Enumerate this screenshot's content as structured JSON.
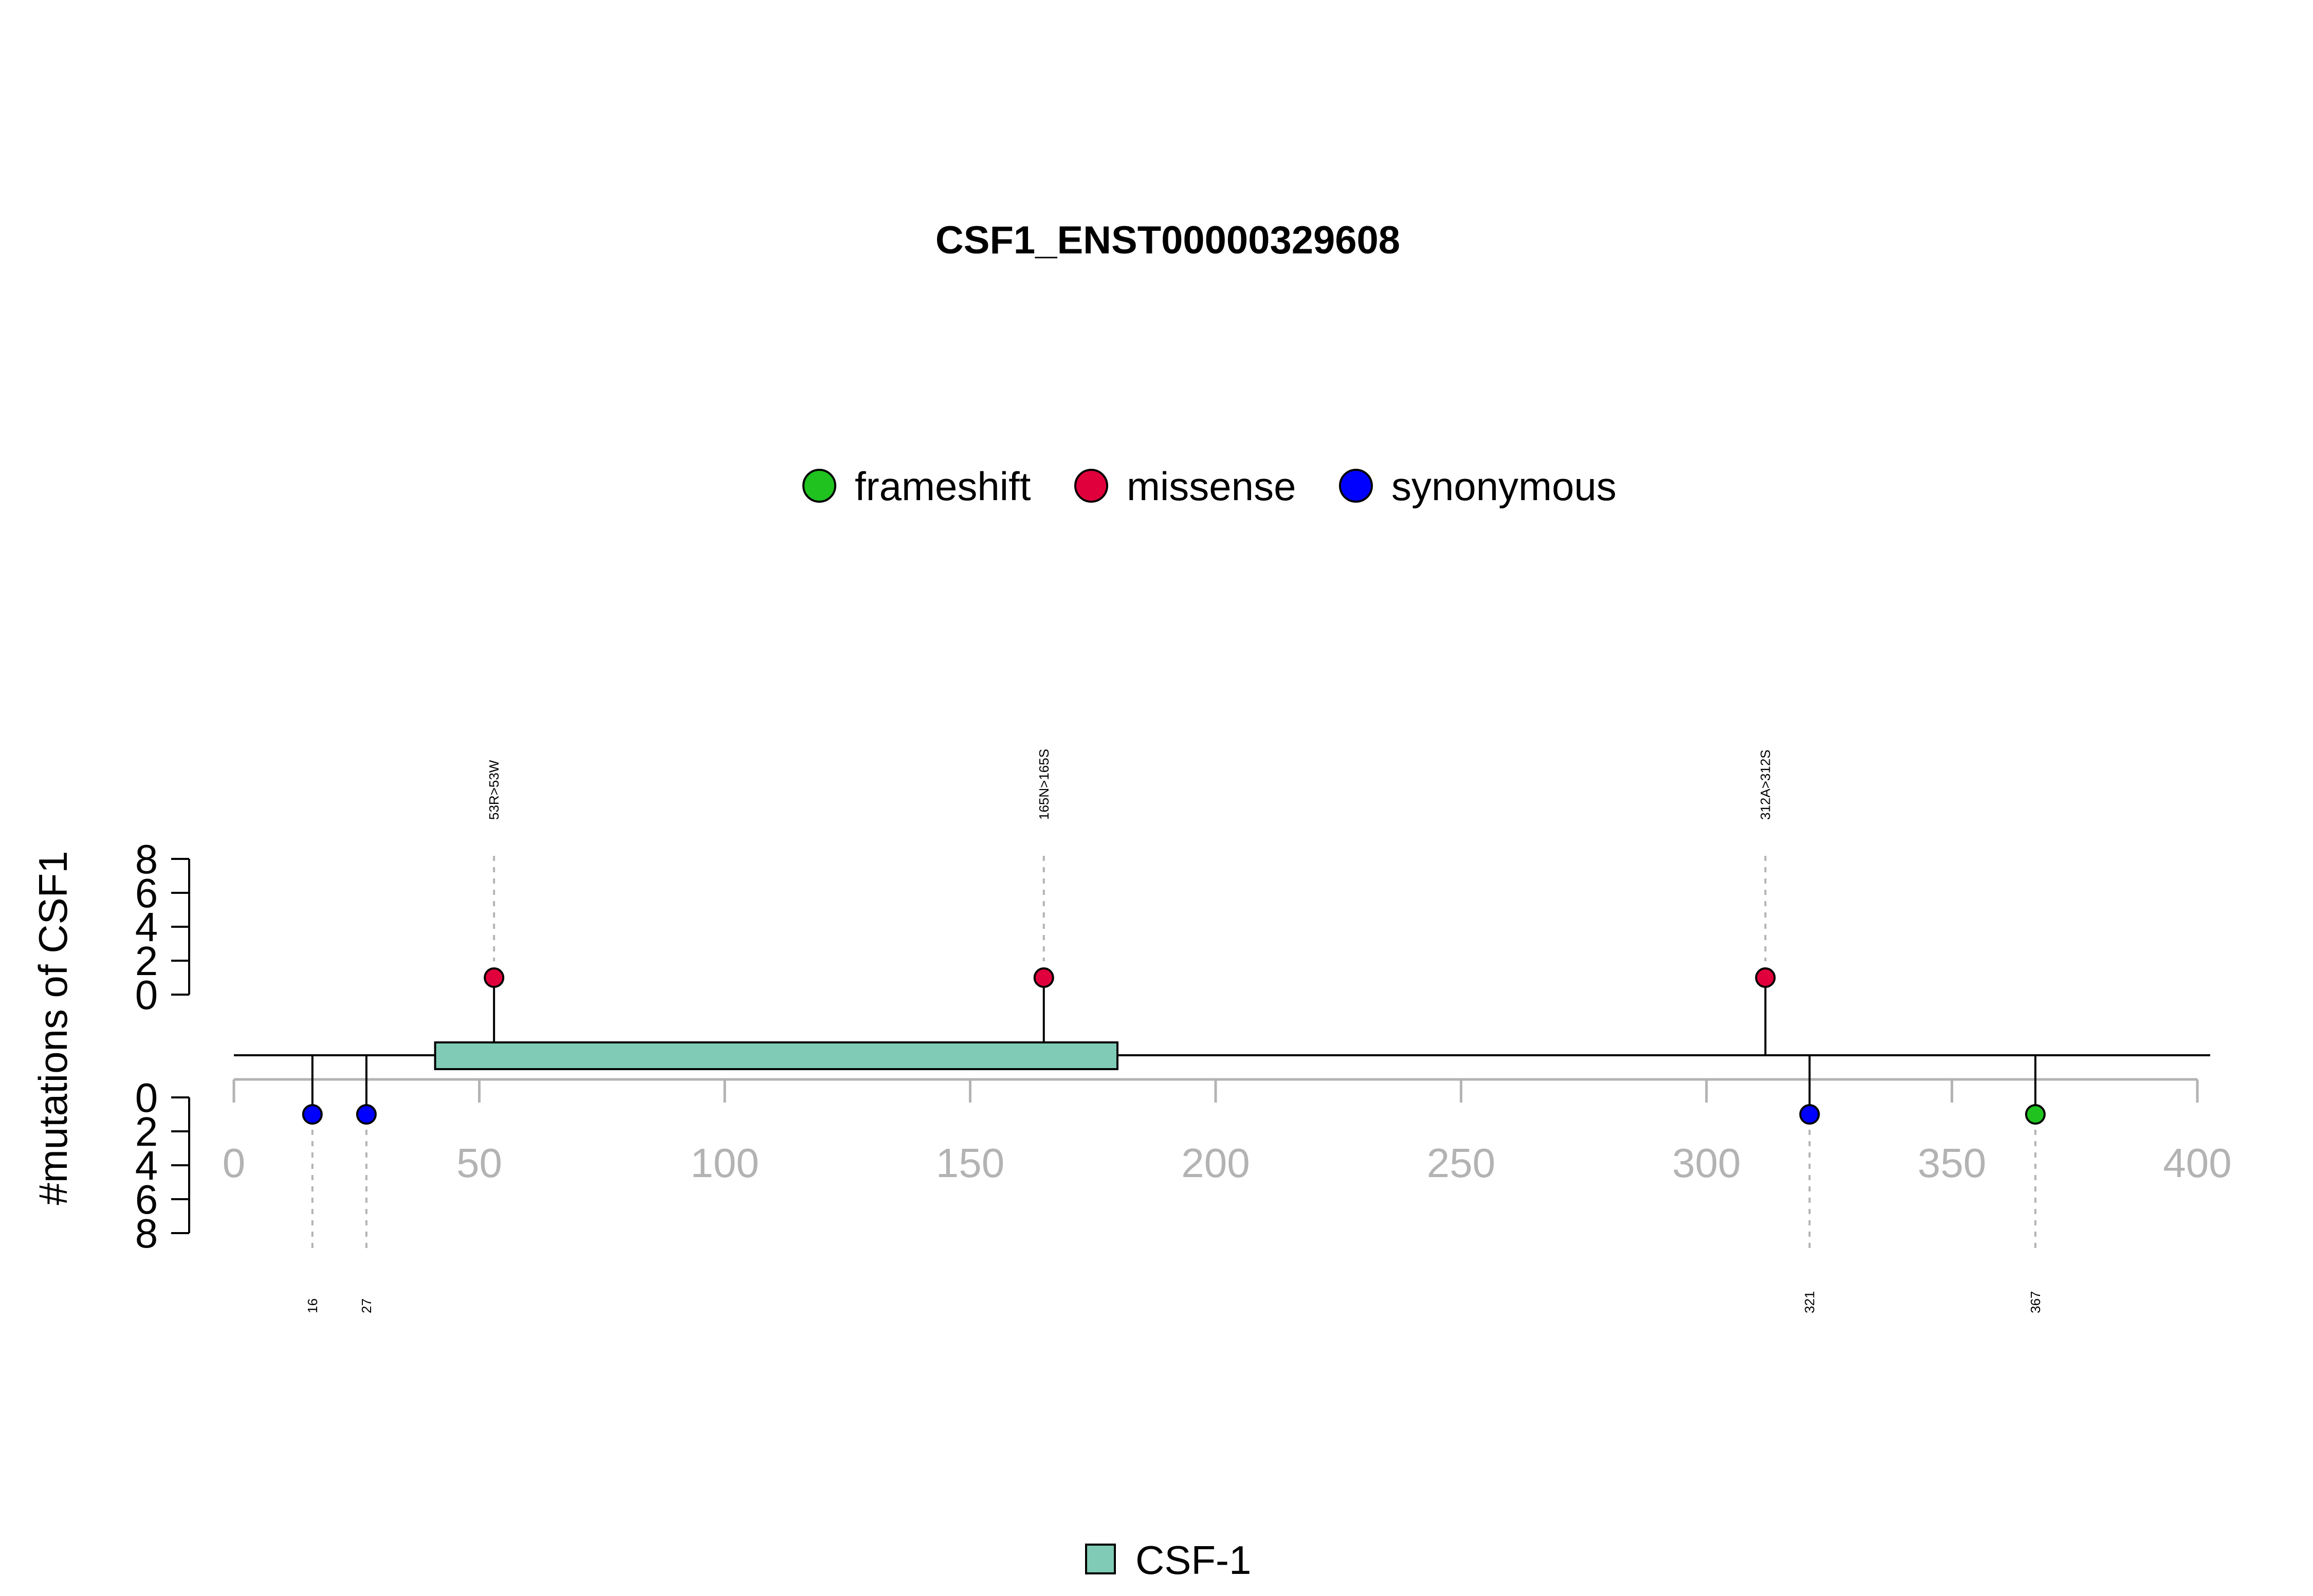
{
  "chart_data": {
    "type": "lollipop",
    "title": "CSF1_ENST00000329608",
    "ylabel": "#mutations of CSF1",
    "protein_length": 400,
    "xlim": [
      0,
      400
    ],
    "x_ticks": [
      0,
      50,
      100,
      150,
      200,
      250,
      300,
      350,
      400
    ],
    "y_ticks_top": [
      0,
      2,
      4,
      6,
      8
    ],
    "y_ticks_bottom": [
      0,
      2,
      4,
      6,
      8
    ],
    "legend_top": [
      {
        "name": "frameshift",
        "color": "#1fc21f"
      },
      {
        "name": "missense",
        "color": "#e0003c"
      },
      {
        "name": "synonymous",
        "color": "#0000ff"
      }
    ],
    "domains": [
      {
        "name": "CSF-1",
        "start": 41,
        "end": 180,
        "color": "#7fcbb5"
      }
    ],
    "legend_domains": [
      {
        "name": "CSF-1",
        "color": "#7fcbb5"
      }
    ],
    "mutations_top": [
      {
        "position": 53,
        "count": 1,
        "type": "missense",
        "label": "53R>53W"
      },
      {
        "position": 165,
        "count": 1,
        "type": "missense",
        "label": "165N>165S"
      },
      {
        "position": 312,
        "count": 1,
        "type": "missense",
        "label": "312A>312S"
      }
    ],
    "mutations_bottom": [
      {
        "position": 16,
        "count": 1,
        "type": "synonymous",
        "label": "16"
      },
      {
        "position": 27,
        "count": 1,
        "type": "synonymous",
        "label": "27"
      },
      {
        "position": 321,
        "count": 1,
        "type": "synonymous",
        "label": "321"
      },
      {
        "position": 367,
        "count": 1,
        "type": "frameshift",
        "label": "367"
      }
    ]
  }
}
